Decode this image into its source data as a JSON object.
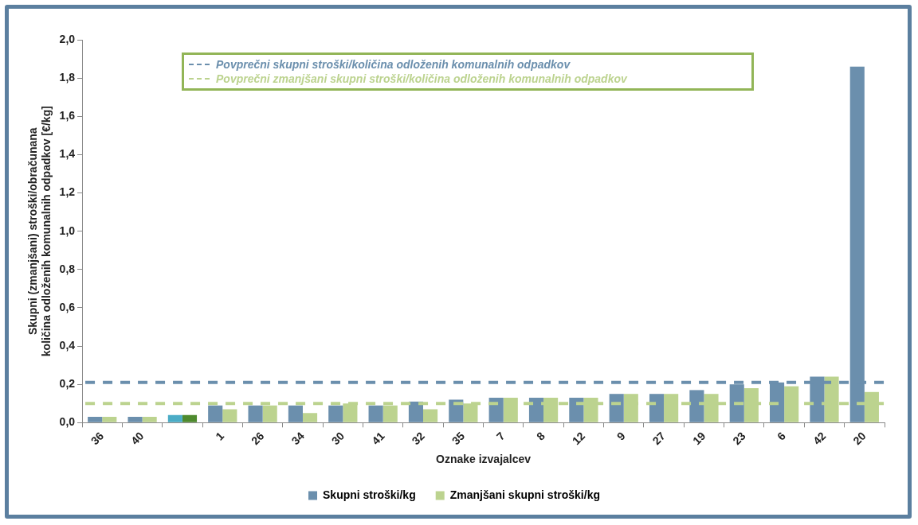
{
  "chart_data": {
    "type": "bar",
    "xlabel": "Oznake izvajalcev",
    "ylabel": "Skupni (zmanjšani) stroški/obračunana količina odloženih komunalnih odpadkov [€/kg]",
    "categories": [
      "36",
      "40",
      null,
      "1",
      "26",
      "34",
      "30",
      "41",
      "32",
      "35",
      "7",
      "8",
      "12",
      "9",
      "27",
      "19",
      "23",
      "6",
      "42",
      "20"
    ],
    "series": [
      {
        "name": "Skupni stroški/kg",
        "color": "#6b8fad",
        "colors": [
          "#6b8fad",
          "#6b8fad",
          "#4bacc6",
          "#6b8fad",
          "#6b8fad",
          "#6b8fad",
          "#6b8fad",
          "#6b8fad",
          "#6b8fad",
          "#6b8fad",
          "#6b8fad",
          "#6b8fad",
          "#6b8fad",
          "#6b8fad",
          "#6b8fad",
          "#6b8fad",
          "#6b8fad",
          "#6b8fad",
          "#6b8fad",
          "#6b8fad"
        ],
        "values": [
          0.03,
          0.03,
          0.04,
          0.09,
          0.09,
          0.09,
          0.09,
          0.09,
          0.11,
          0.12,
          0.13,
          0.13,
          0.13,
          0.15,
          0.15,
          0.17,
          0.2,
          0.21,
          0.24,
          1.86
        ]
      },
      {
        "name": "Zmanjšani skupni stroški/kg",
        "color": "#bcd38f",
        "colors": [
          "#bcd38f",
          "#bcd38f",
          "#4e8a2e",
          "#bcd38f",
          "#bcd38f",
          "#bcd38f",
          "#bcd38f",
          "#bcd38f",
          "#bcd38f",
          "#bcd38f",
          "#bcd38f",
          "#bcd38f",
          "#bcd38f",
          "#bcd38f",
          "#bcd38f",
          "#bcd38f",
          "#bcd38f",
          "#bcd38f",
          "#bcd38f",
          "#bcd38f"
        ],
        "values": [
          0.03,
          0.03,
          0.04,
          0.07,
          0.09,
          0.05,
          0.1,
          0.09,
          0.07,
          0.1,
          0.13,
          0.13,
          0.13,
          0.15,
          0.15,
          0.15,
          0.18,
          0.19,
          0.24,
          0.16
        ]
      }
    ],
    "ylim": [
      0,
      2
    ],
    "yticks": [
      {
        "value": 0,
        "label": "0,0"
      },
      {
        "value": 0.2,
        "label": "0,2"
      },
      {
        "value": 0.4,
        "label": "0,4"
      },
      {
        "value": 0.6,
        "label": "0,6"
      },
      {
        "value": 0.8,
        "label": "0,8"
      },
      {
        "value": 1,
        "label": "1,0"
      },
      {
        "value": 1.2,
        "label": "1,2"
      },
      {
        "value": 1.4,
        "label": "1,4"
      },
      {
        "value": 1.6,
        "label": "1,6"
      },
      {
        "value": 1.8,
        "label": "1,8"
      },
      {
        "value": 2,
        "label": "2,0"
      }
    ],
    "ref_lines": [
      {
        "axis": "y",
        "value": 0.21,
        "label": "Povprečni skupni stroški/količina odloženih komunalnih odpadkov",
        "color": "#6b8fad",
        "line_style": "dashed"
      },
      {
        "axis": "y",
        "value": 0.1,
        "label": "Povprečni zmanjšani skupni stroški/količina odloženih komunalnih odpadkov",
        "color": "#bcd38f",
        "line_style": "dashed"
      }
    ],
    "grid": false,
    "legend": "bottom"
  }
}
